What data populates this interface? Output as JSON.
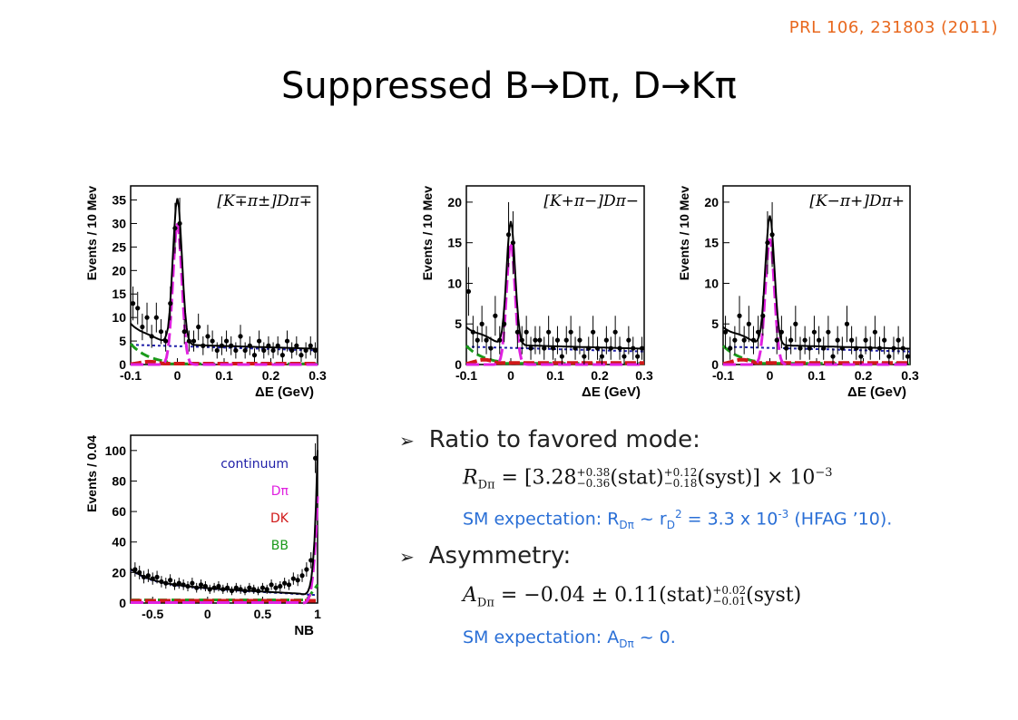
{
  "reference": "PRL 106, 231803 (2011)",
  "title": "Suppressed B→Dπ, D→Kπ",
  "bullets": {
    "ratio_label": "Ratio to favored mode:",
    "ratio_formula_lhs": "R",
    "ratio_formula_sub": "Dπ",
    "ratio_formula_body": " = [3.28",
    "ratio_formula_sup1": "+0.38",
    "ratio_formula_sub1": "−0.36",
    "ratio_formula_stat": "(stat)",
    "ratio_formula_sup2": "+0.12",
    "ratio_formula_sub2": "−0.18",
    "ratio_formula_syst": "(syst)] × 10",
    "ratio_formula_exp": "−3",
    "ratio_sm_prefix": "SM expectation: R",
    "ratio_sm_sub": "Dπ",
    "ratio_sm_mid": " ~ r",
    "ratio_sm_sub2": "D",
    "ratio_sm_sup": "2",
    "ratio_sm_mid2": " = 3.3 x 10",
    "ratio_sm_sup2": "-3",
    "ratio_sm_suffix": " (HFAG ’10).",
    "asym_label": "Asymmetry:",
    "asym_formula_lhs": "A",
    "asym_formula_sub": "Dπ",
    "asym_formula_body": " = −0.04 ± 0.11(stat)",
    "asym_formula_sup": "+0.02",
    "asym_formula_sub2": "−0.01",
    "asym_formula_syst": "(syst)",
    "asym_sm_prefix": "SM expectation: A",
    "asym_sm_sub": "Dπ",
    "asym_sm_suffix": " ~ 0."
  },
  "legend": [
    {
      "label": "continuum",
      "color": "#1f1fa8"
    },
    {
      "label": "Dπ",
      "color": "#e020e0"
    },
    {
      "label": "DK",
      "color": "#d01818"
    },
    {
      "label": "BB",
      "color": "#1a9a1a"
    }
  ],
  "chart_data": [
    {
      "type": "line",
      "title": "[K∓π±]Dπ∓",
      "xlabel": "ΔE (GeV)",
      "ylabel": "Events / 10 Mev",
      "xlim": [
        -0.1,
        0.3
      ],
      "ylim": [
        0,
        38
      ],
      "xticks": [
        "-0.1",
        "0",
        "0.1",
        "0.2",
        "0.3"
      ],
      "yticks": [
        "0",
        "5",
        "10",
        "15",
        "20",
        "25",
        "30",
        "35"
      ],
      "points": [
        [
          -0.095,
          13
        ],
        [
          -0.085,
          12
        ],
        [
          -0.075,
          8
        ],
        [
          -0.065,
          10
        ],
        [
          -0.055,
          6
        ],
        [
          -0.045,
          10
        ],
        [
          -0.035,
          7
        ],
        [
          -0.025,
          5
        ],
        [
          -0.015,
          13
        ],
        [
          -0.005,
          29
        ],
        [
          0.005,
          30
        ],
        [
          0.015,
          7
        ],
        [
          0.025,
          5
        ],
        [
          0.035,
          5
        ],
        [
          0.045,
          8
        ],
        [
          0.055,
          4
        ],
        [
          0.065,
          6
        ],
        [
          0.075,
          5
        ],
        [
          0.085,
          3
        ],
        [
          0.095,
          4
        ],
        [
          0.105,
          5
        ],
        [
          0.115,
          4
        ],
        [
          0.125,
          3
        ],
        [
          0.135,
          6
        ],
        [
          0.145,
          3
        ],
        [
          0.155,
          4
        ],
        [
          0.165,
          2
        ],
        [
          0.175,
          5
        ],
        [
          0.185,
          3
        ],
        [
          0.195,
          4
        ],
        [
          0.205,
          3
        ],
        [
          0.215,
          4
        ],
        [
          0.225,
          2
        ],
        [
          0.235,
          5
        ],
        [
          0.245,
          3
        ],
        [
          0.255,
          4
        ],
        [
          0.265,
          2
        ],
        [
          0.275,
          3
        ],
        [
          0.285,
          4
        ],
        [
          0.295,
          3
        ]
      ],
      "peak": 35,
      "signal_peak": 30,
      "continuum_start": 4.2,
      "continuum_end": 3.0
    },
    {
      "type": "line",
      "title": "[K+π−]Dπ−",
      "xlabel": "ΔE (GeV)",
      "ylabel": "Events / 10 Mev",
      "xlim": [
        -0.1,
        0.3
      ],
      "ylim": [
        0,
        22
      ],
      "xticks": [
        "-0.1",
        "0",
        "0.1",
        "0.2",
        "0.3"
      ],
      "yticks": [
        "0",
        "5",
        "10",
        "15",
        "20"
      ],
      "points": [
        [
          -0.095,
          9
        ],
        [
          -0.085,
          4
        ],
        [
          -0.075,
          3
        ],
        [
          -0.065,
          5
        ],
        [
          -0.055,
          3
        ],
        [
          -0.045,
          2
        ],
        [
          -0.035,
          6
        ],
        [
          -0.025,
          3
        ],
        [
          -0.015,
          5
        ],
        [
          -0.005,
          16
        ],
        [
          0.005,
          15
        ],
        [
          0.015,
          4
        ],
        [
          0.025,
          3
        ],
        [
          0.035,
          4
        ],
        [
          0.045,
          2
        ],
        [
          0.055,
          3
        ],
        [
          0.065,
          3
        ],
        [
          0.075,
          2
        ],
        [
          0.085,
          4
        ],
        [
          0.095,
          2
        ],
        [
          0.105,
          3
        ],
        [
          0.115,
          1
        ],
        [
          0.125,
          3
        ],
        [
          0.135,
          4
        ],
        [
          0.145,
          2
        ],
        [
          0.155,
          3
        ],
        [
          0.165,
          1
        ],
        [
          0.175,
          2
        ],
        [
          0.185,
          4
        ],
        [
          0.195,
          2
        ],
        [
          0.205,
          1
        ],
        [
          0.215,
          3
        ],
        [
          0.225,
          2
        ],
        [
          0.235,
          4
        ],
        [
          0.245,
          2
        ],
        [
          0.255,
          1
        ],
        [
          0.265,
          3
        ],
        [
          0.275,
          2
        ],
        [
          0.285,
          1
        ],
        [
          0.295,
          2
        ]
      ],
      "peak": 17.3,
      "signal_peak": 15,
      "continuum_start": 2.2,
      "continuum_end": 1.6
    },
    {
      "type": "line",
      "title": "[K−π+]Dπ+",
      "xlabel": "ΔE (GeV)",
      "ylabel": "Events / 10 Mev",
      "xlim": [
        -0.1,
        0.3
      ],
      "ylim": [
        0,
        22
      ],
      "xticks": [
        "-0.1",
        "0",
        "0.1",
        "0.2",
        "0.3"
      ],
      "yticks": [
        "0",
        "5",
        "10",
        "15",
        "20"
      ],
      "points": [
        [
          -0.095,
          4
        ],
        [
          -0.085,
          2
        ],
        [
          -0.075,
          3
        ],
        [
          -0.065,
          6
        ],
        [
          -0.055,
          3
        ],
        [
          -0.045,
          5
        ],
        [
          -0.035,
          3
        ],
        [
          -0.025,
          4
        ],
        [
          -0.015,
          6
        ],
        [
          -0.005,
          15
        ],
        [
          0.005,
          16
        ],
        [
          0.015,
          3
        ],
        [
          0.025,
          4
        ],
        [
          0.035,
          2
        ],
        [
          0.045,
          3
        ],
        [
          0.055,
          5
        ],
        [
          0.065,
          2
        ],
        [
          0.075,
          3
        ],
        [
          0.085,
          2
        ],
        [
          0.095,
          4
        ],
        [
          0.105,
          3
        ],
        [
          0.115,
          2
        ],
        [
          0.125,
          4
        ],
        [
          0.135,
          1
        ],
        [
          0.145,
          3
        ],
        [
          0.155,
          2
        ],
        [
          0.165,
          5
        ],
        [
          0.175,
          3
        ],
        [
          0.185,
          2
        ],
        [
          0.195,
          1
        ],
        [
          0.205,
          3
        ],
        [
          0.215,
          2
        ],
        [
          0.225,
          4
        ],
        [
          0.235,
          2
        ],
        [
          0.245,
          3
        ],
        [
          0.255,
          1
        ],
        [
          0.265,
          2
        ],
        [
          0.275,
          3
        ],
        [
          0.285,
          2
        ],
        [
          0.295,
          1
        ]
      ],
      "peak": 18,
      "signal_peak": 15.5,
      "continuum_start": 2.2,
      "continuum_end": 1.6
    },
    {
      "type": "line",
      "title": "",
      "xlabel": "NB",
      "ylabel": "Events / 0.04",
      "xlim": [
        -0.7,
        1.0
      ],
      "ylim": [
        0,
        110
      ],
      "xticks": [
        "-0.5",
        "0",
        "0.5",
        "1"
      ],
      "yticks": [
        "0",
        "20",
        "40",
        "60",
        "80",
        "100"
      ],
      "points": [
        [
          -0.66,
          22
        ],
        [
          -0.62,
          20
        ],
        [
          -0.58,
          17
        ],
        [
          -0.54,
          18
        ],
        [
          -0.5,
          16
        ],
        [
          -0.46,
          17
        ],
        [
          -0.42,
          14
        ],
        [
          -0.38,
          13
        ],
        [
          -0.34,
          15
        ],
        [
          -0.3,
          12
        ],
        [
          -0.26,
          13
        ],
        [
          -0.22,
          12
        ],
        [
          -0.18,
          11
        ],
        [
          -0.14,
          13
        ],
        [
          -0.1,
          10
        ],
        [
          -0.06,
          12
        ],
        [
          -0.02,
          11
        ],
        [
          0.02,
          9
        ],
        [
          0.06,
          10
        ],
        [
          0.1,
          11
        ],
        [
          0.14,
          9
        ],
        [
          0.18,
          10
        ],
        [
          0.22,
          8
        ],
        [
          0.26,
          10
        ],
        [
          0.3,
          9
        ],
        [
          0.34,
          8
        ],
        [
          0.38,
          10
        ],
        [
          0.42,
          9
        ],
        [
          0.46,
          8
        ],
        [
          0.5,
          10
        ],
        [
          0.54,
          9
        ],
        [
          0.58,
          12
        ],
        [
          0.62,
          10
        ],
        [
          0.66,
          11
        ],
        [
          0.7,
          13
        ],
        [
          0.74,
          12
        ],
        [
          0.78,
          16
        ],
        [
          0.82,
          15
        ],
        [
          0.86,
          18
        ],
        [
          0.9,
          22
        ],
        [
          0.94,
          28
        ],
        [
          0.98,
          95
        ]
      ]
    }
  ]
}
